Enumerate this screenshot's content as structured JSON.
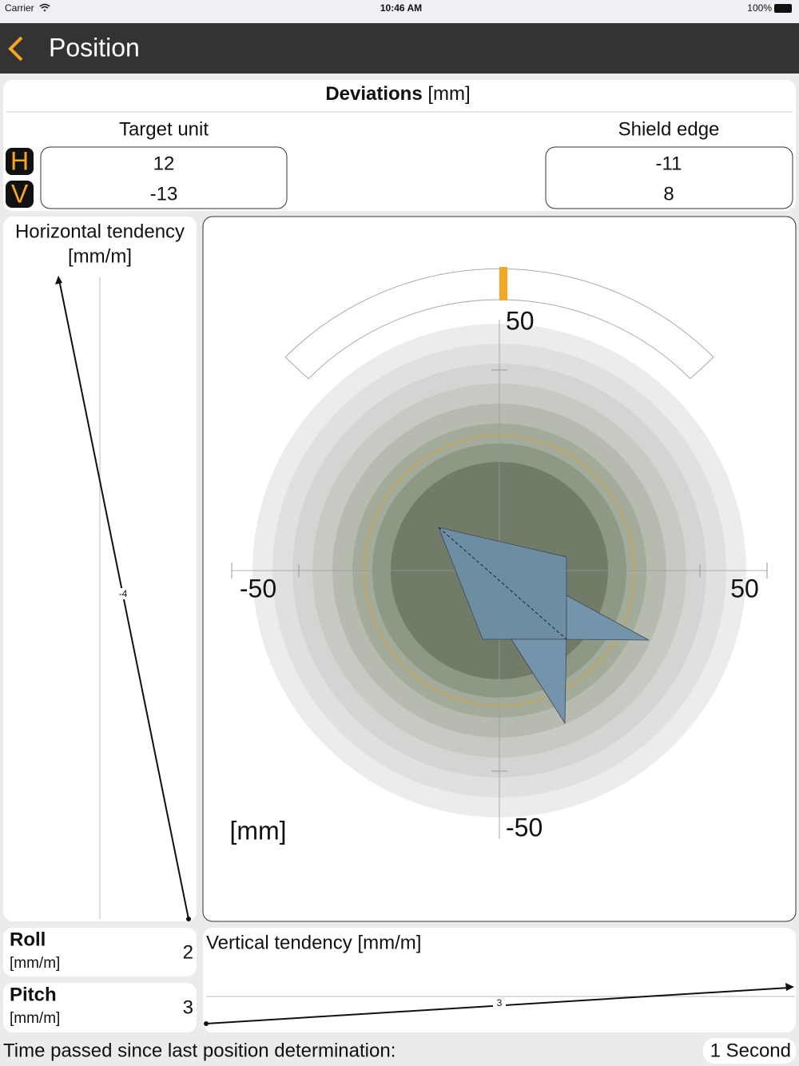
{
  "status_bar": {
    "carrier": "Carrier",
    "time": "10:46 AM",
    "battery": "100%"
  },
  "nav": {
    "back": "<",
    "title": "Position"
  },
  "deviations": {
    "title": "Deviations",
    "unit": "[mm]",
    "h_badge": "H",
    "v_badge": "V",
    "target_unit": {
      "label": "Target unit",
      "h": 12,
      "v": -13
    },
    "shield_edge": {
      "label": "Shield edge",
      "h": -11,
      "v": 8
    }
  },
  "horizontal_tendency": {
    "title": "Horizontal tendency",
    "unit": "[mm/m]",
    "value": -4
  },
  "target_plot": {
    "unit": "[mm]",
    "xlim": [
      -50,
      50
    ],
    "ylim": [
      -50,
      50
    ],
    "xticks": [
      -50,
      50
    ],
    "yticks": [
      -50,
      50
    ]
  },
  "roll": {
    "label": "Roll",
    "unit": "[mm/m]",
    "value": 2
  },
  "pitch": {
    "label": "Pitch",
    "unit": "[mm/m]",
    "value": 3
  },
  "vertical_tendency": {
    "title": "Vertical tendency [mm/m]",
    "value": 3
  },
  "footer": {
    "label": "Time passed since last position determination:",
    "value": "1 Second"
  }
}
